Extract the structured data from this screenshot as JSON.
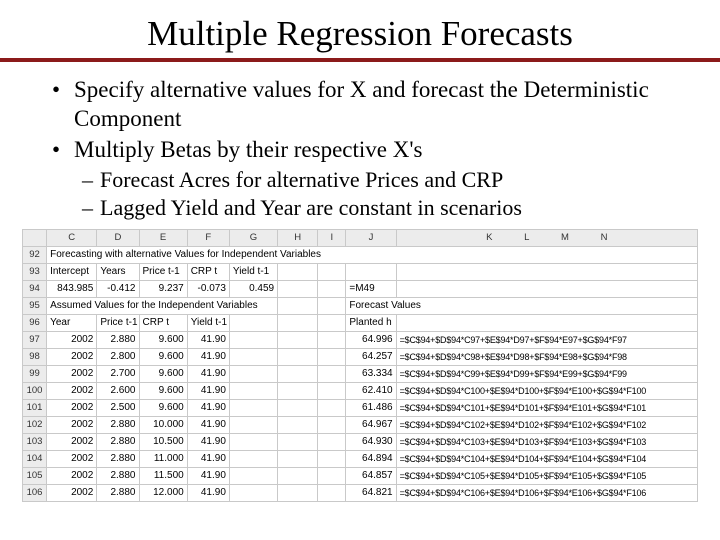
{
  "title": "Multiple Regression Forecasts",
  "bullets": {
    "b1": "Specify alternative values for X and forecast the Deterministic Component",
    "b2": "Multiply Betas by their respective X's",
    "s1": "Forecast Acres for alternative Prices and CRP",
    "s2": "Lagged Yield and Year are constant in scenarios"
  },
  "sheet": {
    "col_headers": [
      "C",
      "D",
      "E",
      "F",
      "G",
      "H",
      "I",
      "J",
      "K",
      "L",
      "M",
      "N"
    ],
    "row_headers": [
      "92",
      "93",
      "94",
      "95",
      "96",
      "97",
      "98",
      "99",
      "100",
      "101",
      "102",
      "103",
      "104",
      "105",
      "106"
    ],
    "row92_label": "Forecasting with alternative Values for Independent Variables",
    "row93": {
      "c": "Intercept",
      "d": "Years",
      "e": "Price t-1",
      "f": "CRP t",
      "g": "Yield t-1"
    },
    "row94": {
      "c": "843.985",
      "d": "-0.412",
      "e": "9.237",
      "f": "-0.073",
      "g": "0.459",
      "j": "=M49"
    },
    "row95_label": "Assumed Values for the Independent Variables",
    "row95_j": "Forecast Values",
    "row96": {
      "c": "Year",
      "d": "Price t-1",
      "e": "CRP t",
      "f": "Yield t-1",
      "j": "Planted h"
    },
    "data_rows": [
      {
        "r": "97",
        "year": "2002",
        "price": "2.880",
        "crp": "9.600",
        "yield": "41.90",
        "forecast": "64.996",
        "formula": "=$C$94+$D$94*C97+$E$94*D97+$F$94*E97+$G$94*F97"
      },
      {
        "r": "98",
        "year": "2002",
        "price": "2.800",
        "crp": "9.600",
        "yield": "41.90",
        "forecast": "64.257",
        "formula": "=$C$94+$D$94*C98+$E$94*D98+$F$94*E98+$G$94*F98"
      },
      {
        "r": "99",
        "year": "2002",
        "price": "2.700",
        "crp": "9.600",
        "yield": "41.90",
        "forecast": "63.334",
        "formula": "=$C$94+$D$94*C99+$E$94*D99+$F$94*E99+$G$94*F99"
      },
      {
        "r": "100",
        "year": "2002",
        "price": "2.600",
        "crp": "9.600",
        "yield": "41.90",
        "forecast": "62.410",
        "formula": "=$C$94+$D$94*C100+$E$94*D100+$F$94*E100+$G$94*F100"
      },
      {
        "r": "101",
        "year": "2002",
        "price": "2.500",
        "crp": "9.600",
        "yield": "41.90",
        "forecast": "61.486",
        "formula": "=$C$94+$D$94*C101+$E$94*D101+$F$94*E101+$G$94*F101"
      },
      {
        "r": "102",
        "year": "2002",
        "price": "2.880",
        "crp": "10.000",
        "yield": "41.90",
        "forecast": "64.967",
        "formula": "=$C$94+$D$94*C102+$E$94*D102+$F$94*E102+$G$94*F102"
      },
      {
        "r": "103",
        "year": "2002",
        "price": "2.880",
        "crp": "10.500",
        "yield": "41.90",
        "forecast": "64.930",
        "formula": "=$C$94+$D$94*C103+$E$94*D103+$F$94*E103+$G$94*F103"
      },
      {
        "r": "104",
        "year": "2002",
        "price": "2.880",
        "crp": "11.000",
        "yield": "41.90",
        "forecast": "64.894",
        "formula": "=$C$94+$D$94*C104+$E$94*D104+$F$94*E104+$G$94*F104"
      },
      {
        "r": "105",
        "year": "2002",
        "price": "2.880",
        "crp": "11.500",
        "yield": "41.90",
        "forecast": "64.857",
        "formula": "=$C$94+$D$94*C105+$E$94*D105+$F$94*E105+$G$94*F105"
      },
      {
        "r": "106",
        "year": "2002",
        "price": "2.880",
        "crp": "12.000",
        "yield": "41.90",
        "forecast": "64.821",
        "formula": "=$C$94+$D$94*C106+$E$94*D106+$F$94*E106+$G$94*F106"
      }
    ]
  },
  "style": {
    "rule_color": "#8b1a1a",
    "grid_color": "#c9c9c9",
    "header_bg": "#ececec",
    "title_fontsize": 35,
    "body_fontsize": 23,
    "sub_fontsize": 22,
    "sheet_fontsize": 10
  }
}
